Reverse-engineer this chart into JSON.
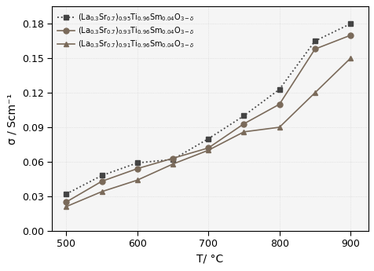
{
  "temperatures": [
    500,
    550,
    600,
    650,
    700,
    750,
    800,
    850,
    900
  ],
  "series": [
    {
      "label": "(La$_{0.3}$Sr$_{0.7}$)$_{0.95}$Ti$_{0.96}$Sm$_{0.04}$O$_{3-\\delta}$",
      "values": [
        0.032,
        0.048,
        0.059,
        0.062,
        0.08,
        0.1,
        0.123,
        0.165,
        0.18
      ],
      "color": "#444444",
      "marker": "s",
      "linestyle": "dotted",
      "linewidth": 1.3
    },
    {
      "label": "(La$_{0.3}$Sr$_{0.7}$)$_{0.93}$Ti$_{0.96}$Sm$_{0.04}$O$_{3-\\delta}$",
      "values": [
        0.025,
        0.043,
        0.054,
        0.063,
        0.072,
        0.093,
        0.11,
        0.158,
        0.17
      ],
      "color": "#7a6a5a",
      "marker": "o",
      "linestyle": "solid",
      "linewidth": 1.2
    },
    {
      "label": "(La$_{0.3}$Sr$_{0.7}$)$_{0.91}$Ti$_{0.96}$Sm$_{0.04}$O$_{3-\\delta}$",
      "values": [
        0.021,
        0.034,
        0.044,
        0.058,
        0.07,
        0.086,
        0.09,
        0.12,
        0.15
      ],
      "color": "#7a6a5a",
      "marker": "^",
      "linestyle": "solid",
      "linewidth": 1.2
    }
  ],
  "xlabel": "T/ °C",
  "ylabel": "σ / Scm⁻¹",
  "xlim": [
    480,
    925
  ],
  "ylim": [
    0.0,
    0.195
  ],
  "xticks": [
    500,
    600,
    700,
    800,
    900
  ],
  "yticks": [
    0.0,
    0.03,
    0.06,
    0.09,
    0.12,
    0.15,
    0.18
  ],
  "background_color": "#f5f5f5",
  "figure_background": "#ffffff",
  "grid_color": "#cccccc",
  "grid_alpha": 0.8,
  "markersize": 5
}
